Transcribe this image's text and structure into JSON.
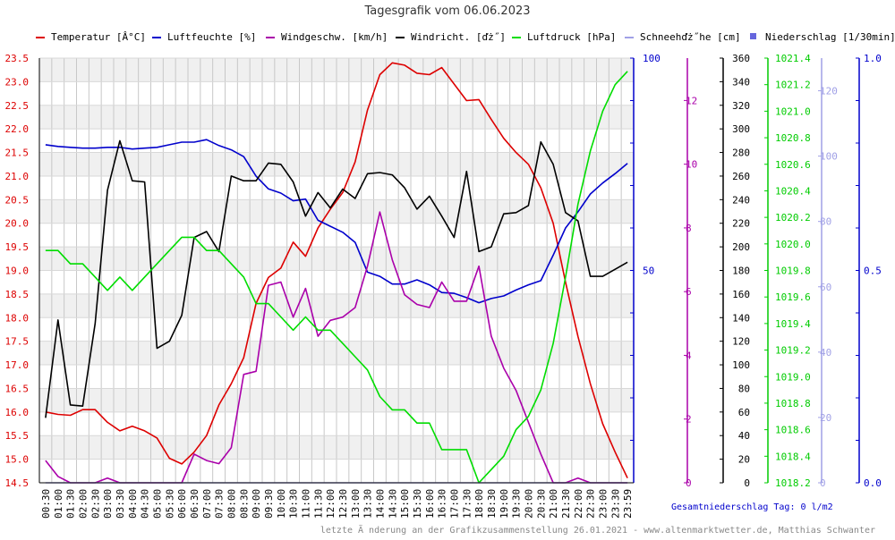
{
  "title": "Tagesgrafik vom 06.06.2023",
  "legend": [
    {
      "label": "Temperatur [Â°C]",
      "color": "#dd0000",
      "kind": "line"
    },
    {
      "label": "Luftfeuchte [%]",
      "color": "#0000cc",
      "kind": "line"
    },
    {
      "label": "Windgeschw. [km/h]",
      "color": "#aa00aa",
      "kind": "line"
    },
    {
      "label": "Windricht. [ďż˝]",
      "color": "#000000",
      "kind": "line"
    },
    {
      "label": "Luftdruck [hPa]",
      "color": "#00dd00",
      "kind": "line"
    },
    {
      "label": "Schneehďż˝he [cm]",
      "color": "#a0a0e6",
      "kind": "line"
    },
    {
      "label": "Niederschlag [1/30min]",
      "color": "#6666dd",
      "kind": "box"
    }
  ],
  "footer": {
    "total": "Gesamtniederschlag Tag: 0 l/m2",
    "credit": "letzte Ã nderung an der Grafikzusammenstellung 26.01.2021 - www.altenmarktwetter.de, Matthias Schwanter"
  },
  "chart_data": {
    "type": "line",
    "title": "Tagesgrafik vom 06.06.2023",
    "x": [
      "00:30",
      "01:00",
      "01:30",
      "02:00",
      "02:30",
      "03:00",
      "03:30",
      "04:00",
      "04:30",
      "05:00",
      "05:30",
      "06:00",
      "06:30",
      "07:00",
      "07:30",
      "08:00",
      "08:30",
      "09:00",
      "09:30",
      "10:00",
      "10:30",
      "11:00",
      "11:30",
      "12:00",
      "12:30",
      "13:00",
      "13:30",
      "14:00",
      "14:30",
      "15:00",
      "15:30",
      "16:00",
      "16:30",
      "17:00",
      "17:30",
      "18:00",
      "18:30",
      "19:00",
      "19:30",
      "20:00",
      "20:30",
      "21:00",
      "21:30",
      "22:00",
      "22:30",
      "23:00",
      "23:30",
      "23:59"
    ],
    "axes": [
      {
        "id": "temp",
        "ticks": [
          "14.5",
          "15.0",
          "15.5",
          "16.0",
          "16.5",
          "17.0",
          "17.5",
          "18.0",
          "18.5",
          "19.0",
          "19.5",
          "20.0",
          "20.5",
          "21.0",
          "21.5",
          "22.0",
          "22.5",
          "23.0",
          "23.5"
        ],
        "range": [
          14.5,
          23.5
        ],
        "color": "#dd0000",
        "position": "left"
      },
      {
        "id": "hum",
        "ticks": [
          "50",
          "100"
        ],
        "range": [
          0,
          100
        ],
        "color": "#0000cc",
        "position": "right"
      },
      {
        "id": "wind",
        "ticks": [
          "0",
          "2",
          "4",
          "6",
          "8",
          "10",
          "12"
        ],
        "range": [
          0,
          13.33
        ],
        "color": "#aa00aa",
        "position": "right"
      },
      {
        "id": "dir",
        "ticks": [
          "0",
          "20",
          "40",
          "60",
          "80",
          "100",
          "120",
          "140",
          "160",
          "180",
          "200",
          "220",
          "240",
          "260",
          "280",
          "300",
          "320",
          "340",
          "360"
        ],
        "range": [
          0,
          360
        ],
        "color": "#000000",
        "position": "right"
      },
      {
        "id": "press",
        "ticks": [
          "1018.2",
          "1018.4",
          "1018.6",
          "1018.8",
          "1019.0",
          "1019.2",
          "1019.4",
          "1019.6",
          "1019.8",
          "1020.0",
          "1020.2",
          "1020.4",
          "1020.6",
          "1020.8",
          "1021.0",
          "1021.2",
          "1021.4"
        ],
        "range": [
          1018.2,
          1021.4
        ],
        "color": "#00cc00",
        "position": "right"
      },
      {
        "id": "snow",
        "ticks": [
          "0",
          "20",
          "40",
          "60",
          "80",
          "100",
          "120"
        ],
        "range": [
          0,
          130
        ],
        "color": "#a0a0e6",
        "position": "right"
      },
      {
        "id": "rain",
        "ticks": [
          "0.0",
          "0.5",
          "1.0"
        ],
        "range": [
          0,
          1
        ],
        "color": "#0000cc",
        "position": "right"
      }
    ],
    "grid": true,
    "legend_position": "top",
    "series": [
      {
        "name": "Temperatur [Â°C]",
        "axis": "temp",
        "color": "#dd0000",
        "values": [
          16.0,
          15.95,
          15.93,
          16.05,
          16.05,
          15.78,
          15.6,
          15.7,
          15.6,
          15.45,
          15.02,
          14.9,
          15.15,
          15.5,
          16.15,
          16.6,
          17.15,
          18.3,
          18.85,
          19.05,
          19.6,
          19.3,
          19.9,
          20.3,
          20.65,
          21.3,
          22.4,
          23.15,
          23.4,
          23.35,
          23.18,
          23.15,
          23.3,
          22.95,
          22.6,
          22.62,
          22.2,
          21.8,
          21.5,
          21.25,
          20.75,
          20.0,
          18.75,
          17.6,
          16.6,
          15.75,
          15.15,
          14.6
        ]
      },
      {
        "name": "Luftfeuchte [%]",
        "axis": "hum",
        "color": "#0000cc",
        "values": [
          79.6,
          79.2,
          79.0,
          78.8,
          78.8,
          79.0,
          79.0,
          78.6,
          78.8,
          79.0,
          79.6,
          80.2,
          80.2,
          80.8,
          79.4,
          78.4,
          76.8,
          72.2,
          69.2,
          68.2,
          66.4,
          66.8,
          61.8,
          60.4,
          59.0,
          56.6,
          49.6,
          48.6,
          46.8,
          46.8,
          47.8,
          46.6,
          44.8,
          44.6,
          43.6,
          42.4,
          43.4,
          44.0,
          45.4,
          46.6,
          47.6,
          53.6,
          60.0,
          63.8,
          68.0,
          70.6,
          72.8,
          75.2
        ]
      },
      {
        "name": "Windgeschw. [km/h]",
        "axis": "wind",
        "color": "#aa00aa",
        "values": [
          0.7,
          0.2,
          0.0,
          0.0,
          0.0,
          0.15,
          0.0,
          0.0,
          0.0,
          0.0,
          0.0,
          0.0,
          0.9,
          0.7,
          0.6,
          1.1,
          3.4,
          3.5,
          6.2,
          6.3,
          5.2,
          6.1,
          4.6,
          5.1,
          5.2,
          5.5,
          6.8,
          8.5,
          7.0,
          5.9,
          5.6,
          5.5,
          6.3,
          5.7,
          5.7,
          6.8,
          4.6,
          3.6,
          2.9,
          1.9,
          0.9,
          0.0,
          0.0,
          0.15,
          0.0,
          0.0,
          0.0,
          0.0
        ]
      },
      {
        "name": "Windricht. [ďż˝]",
        "axis": "dir",
        "color": "#000000",
        "values": [
          55,
          138,
          66,
          65,
          135,
          248,
          290,
          256,
          255,
          114,
          120,
          142,
          208,
          213,
          196,
          260,
          256,
          256,
          271,
          270,
          255,
          226,
          246,
          233,
          249,
          241,
          262,
          263,
          261,
          250,
          232,
          243,
          226,
          208,
          264,
          196,
          200,
          228,
          229,
          235,
          289,
          270,
          229,
          222,
          175,
          175,
          181,
          187
        ]
      },
      {
        "name": "Luftdruck [hPa]",
        "axis": "press",
        "color": "#00dd00",
        "values": [
          1019.95,
          1019.95,
          1019.85,
          1019.85,
          1019.75,
          1019.65,
          1019.75,
          1019.65,
          1019.75,
          1019.85,
          1019.95,
          1020.05,
          1020.05,
          1019.95,
          1019.95,
          1019.85,
          1019.75,
          1019.55,
          1019.55,
          1019.45,
          1019.35,
          1019.45,
          1019.35,
          1019.35,
          1019.25,
          1019.15,
          1019.05,
          1018.85,
          1018.75,
          1018.75,
          1018.65,
          1018.65,
          1018.45,
          1018.45,
          1018.45,
          1018.2,
          1018.3,
          1018.4,
          1018.6,
          1018.7,
          1018.9,
          1019.25,
          1019.75,
          1020.3,
          1020.7,
          1021.0,
          1021.2,
          1021.3
        ]
      },
      {
        "name": "Schneehďż˝he [cm]",
        "axis": "snow",
        "color": "#a0a0e6",
        "values": [
          0,
          0,
          0,
          0,
          0,
          0,
          0,
          0,
          0,
          0,
          0,
          0,
          0,
          0,
          0,
          0,
          0,
          0,
          0,
          0,
          0,
          0,
          0,
          0,
          0,
          0,
          0,
          0,
          0,
          0,
          0,
          0,
          0,
          0,
          0,
          0,
          0,
          0,
          0,
          0,
          0,
          0,
          0,
          0,
          0,
          0,
          0,
          0
        ]
      }
    ]
  }
}
